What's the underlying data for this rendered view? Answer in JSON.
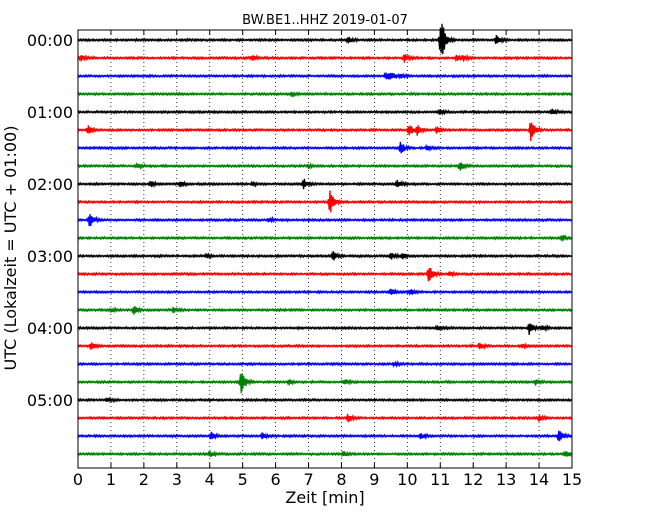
{
  "chart_data": {
    "type": "line",
    "title": "BW.BE1..HHZ 2019-01-07",
    "xlabel": "Zeit  [min]",
    "ylabel": "UTC (Lokalzeit = UTC + 01:00)",
    "xlim": [
      0,
      15
    ],
    "x_ticks": [
      "0",
      "1",
      "2",
      "3",
      "4",
      "5",
      "6",
      "7",
      "8",
      "9",
      "10",
      "11",
      "12",
      "13",
      "14",
      "15"
    ],
    "y_ticks": [
      "00:00",
      "01:00",
      "02:00",
      "03:00",
      "04:00",
      "05:00"
    ],
    "grid": "vertical dotted lines at each minute",
    "trace_colors": [
      "#000000",
      "#ff0000",
      "#0000ff",
      "#008000"
    ],
    "row_interval_minutes": 15,
    "series": [
      {
        "start": "00:00",
        "events": [
          {
            "t": 8.2,
            "a": 4
          },
          {
            "t": 11.0,
            "a": 16
          },
          {
            "t": 11.05,
            "a": 12
          },
          {
            "t": 12.7,
            "a": 5
          }
        ]
      },
      {
        "start": "00:15",
        "events": [
          {
            "t": 0.1,
            "a": 3
          },
          {
            "t": 5.3,
            "a": 3
          },
          {
            "t": 9.9,
            "a": 5
          },
          {
            "t": 11.5,
            "a": 3
          },
          {
            "t": 11.7,
            "a": 3
          }
        ]
      },
      {
        "start": "00:30",
        "events": [
          {
            "t": 9.35,
            "a": 5
          },
          {
            "t": 9.5,
            "a": 3
          },
          {
            "t": 9.8,
            "a": 2
          }
        ]
      },
      {
        "start": "00:45",
        "events": [
          {
            "t": 6.5,
            "a": 2
          }
        ]
      },
      {
        "start": "01:00",
        "events": [
          {
            "t": 11.0,
            "a": 3
          },
          {
            "t": 14.4,
            "a": 3
          }
        ]
      },
      {
        "start": "01:15",
        "events": [
          {
            "t": 0.3,
            "a": 5
          },
          {
            "t": 10.05,
            "a": 7
          },
          {
            "t": 10.3,
            "a": 5
          },
          {
            "t": 10.9,
            "a": 4
          },
          {
            "t": 13.75,
            "a": 13
          }
        ]
      },
      {
        "start": "01:30",
        "events": [
          {
            "t": 9.8,
            "a": 7
          },
          {
            "t": 10.6,
            "a": 3
          }
        ]
      },
      {
        "start": "01:45",
        "events": [
          {
            "t": 1.8,
            "a": 2
          },
          {
            "t": 7.0,
            "a": 2
          },
          {
            "t": 11.6,
            "a": 5
          }
        ]
      },
      {
        "start": "02:00",
        "events": [
          {
            "t": 2.2,
            "a": 3
          },
          {
            "t": 3.1,
            "a": 3
          },
          {
            "t": 5.3,
            "a": 2
          },
          {
            "t": 6.85,
            "a": 6
          },
          {
            "t": 9.7,
            "a": 4
          }
        ]
      },
      {
        "start": "02:15",
        "events": [
          {
            "t": 7.65,
            "a": 13
          }
        ]
      },
      {
        "start": "02:30",
        "events": [
          {
            "t": 0.35,
            "a": 8
          },
          {
            "t": 5.8,
            "a": 2
          }
        ]
      },
      {
        "start": "02:45",
        "events": [
          {
            "t": 14.7,
            "a": 3
          }
        ]
      },
      {
        "start": "03:00",
        "events": [
          {
            "t": 3.9,
            "a": 2
          },
          {
            "t": 7.75,
            "a": 5
          },
          {
            "t": 9.5,
            "a": 4
          },
          {
            "t": 9.85,
            "a": 3
          }
        ]
      },
      {
        "start": "03:15",
        "events": [
          {
            "t": 10.65,
            "a": 11
          },
          {
            "t": 11.3,
            "a": 2
          }
        ]
      },
      {
        "start": "03:30",
        "events": [
          {
            "t": 9.5,
            "a": 4
          },
          {
            "t": 10.1,
            "a": 3
          }
        ]
      },
      {
        "start": "03:45",
        "events": [
          {
            "t": 1.0,
            "a": 2
          },
          {
            "t": 1.7,
            "a": 4
          },
          {
            "t": 2.9,
            "a": 3
          }
        ]
      },
      {
        "start": "04:00",
        "events": [
          {
            "t": 10.9,
            "a": 3
          },
          {
            "t": 13.7,
            "a": 7
          },
          {
            "t": 14.1,
            "a": 3
          }
        ]
      },
      {
        "start": "04:15",
        "events": [
          {
            "t": 0.4,
            "a": 4
          },
          {
            "t": 12.2,
            "a": 4
          },
          {
            "t": 13.5,
            "a": 2
          }
        ]
      },
      {
        "start": "04:30",
        "events": [
          {
            "t": 9.6,
            "a": 2
          }
        ]
      },
      {
        "start": "04:45",
        "events": [
          {
            "t": 4.95,
            "a": 15
          },
          {
            "t": 6.4,
            "a": 3
          },
          {
            "t": 8.1,
            "a": 3
          },
          {
            "t": 13.9,
            "a": 3
          }
        ]
      },
      {
        "start": "05:00",
        "events": [
          {
            "t": 0.9,
            "a": 2
          }
        ]
      },
      {
        "start": "05:15",
        "events": [
          {
            "t": 8.2,
            "a": 4
          },
          {
            "t": 14.0,
            "a": 3
          }
        ]
      },
      {
        "start": "05:30",
        "events": [
          {
            "t": 4.05,
            "a": 4
          },
          {
            "t": 5.6,
            "a": 3
          },
          {
            "t": 10.4,
            "a": 3
          },
          {
            "t": 14.6,
            "a": 7
          }
        ]
      },
      {
        "start": "05:45",
        "events": [
          {
            "t": 4.0,
            "a": 3
          },
          {
            "t": 8.05,
            "a": 3
          },
          {
            "t": 14.8,
            "a": 4
          }
        ]
      }
    ]
  }
}
